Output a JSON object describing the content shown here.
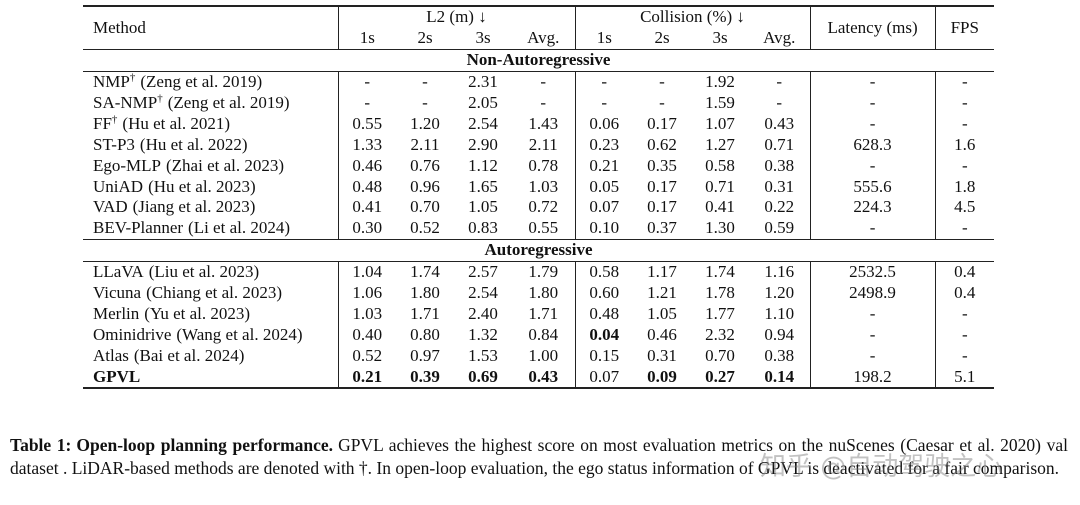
{
  "table": {
    "header": {
      "method": "Method",
      "groups": [
        {
          "label": "L2 (m) ↓",
          "sub": [
            "1s",
            "2s",
            "3s",
            "Avg."
          ]
        },
        {
          "label": "Collision (%) ↓",
          "sub": [
            "1s",
            "2s",
            "3s",
            "Avg."
          ]
        }
      ],
      "latency": "Latency (ms)",
      "fps": "FPS"
    },
    "sections": [
      {
        "title": "Non-Autoregressive",
        "rows": [
          {
            "method": "NMP",
            "sup": "†",
            "cite": "(Zeng et al. 2019)",
            "cells": [
              "-",
              "-",
              "2.31",
              "-",
              "-",
              "-",
              "1.92",
              "-",
              "-",
              "-"
            ]
          },
          {
            "method": "SA-NMP",
            "sup": "†",
            "cite": "(Zeng et al. 2019)",
            "cells": [
              "-",
              "-",
              "2.05",
              "-",
              "-",
              "-",
              "1.59",
              "-",
              "-",
              "-"
            ]
          },
          {
            "method": "FF",
            "sup": "†",
            "cite": "(Hu et al. 2021)",
            "cells": [
              "0.55",
              "1.20",
              "2.54",
              "1.43",
              "0.06",
              "0.17",
              "1.07",
              "0.43",
              "-",
              "-"
            ]
          },
          {
            "method": "ST-P3",
            "cite": "(Hu et al. 2022)",
            "cells": [
              "1.33",
              "2.11",
              "2.90",
              "2.11",
              "0.23",
              "0.62",
              "1.27",
              "0.71",
              "628.3",
              "1.6"
            ]
          },
          {
            "method": "Ego-MLP",
            "cite": "(Zhai et al. 2023)",
            "cells": [
              "0.46",
              "0.76",
              "1.12",
              "0.78",
              "0.21",
              "0.35",
              "0.58",
              "0.38",
              "-",
              "-"
            ]
          },
          {
            "method": "UniAD",
            "cite": "(Hu et al. 2023)",
            "cells": [
              "0.48",
              "0.96",
              "1.65",
              "1.03",
              "0.05",
              "0.17",
              "0.71",
              "0.31",
              "555.6",
              "1.8"
            ]
          },
          {
            "method": "VAD",
            "cite": "(Jiang et al. 2023)",
            "cells": [
              "0.41",
              "0.70",
              "1.05",
              "0.72",
              "0.07",
              "0.17",
              "0.41",
              "0.22",
              "224.3",
              "4.5"
            ]
          },
          {
            "method": "BEV-Planner",
            "cite": "(Li et al. 2024)",
            "cells": [
              "0.30",
              "0.52",
              "0.83",
              "0.55",
              "0.10",
              "0.37",
              "1.30",
              "0.59",
              "-",
              "-"
            ]
          }
        ]
      },
      {
        "title": "Autoregressive",
        "rows": [
          {
            "method": "LLaVA",
            "cite": "(Liu et al. 2023)",
            "cells": [
              "1.04",
              "1.74",
              "2.57",
              "1.79",
              "0.58",
              "1.17",
              "1.74",
              "1.16",
              "2532.5",
              "0.4"
            ]
          },
          {
            "method": "Vicuna",
            "cite": "(Chiang et al. 2023)",
            "cells": [
              "1.06",
              "1.80",
              "2.54",
              "1.80",
              "0.60",
              "1.21",
              "1.78",
              "1.20",
              "2498.9",
              "0.4"
            ]
          },
          {
            "method": "Merlin",
            "cite": "(Yu et al. 2023)",
            "cells": [
              "1.03",
              "1.71",
              "2.40",
              "1.71",
              "0.48",
              "1.05",
              "1.77",
              "1.10",
              "-",
              "-"
            ]
          },
          {
            "method": "Ominidrive",
            "cite": "(Wang et al. 2024)",
            "cells": [
              "0.40",
              "0.80",
              "1.32",
              "0.84",
              "0.04",
              "0.46",
              "2.32",
              "0.94",
              "-",
              "-"
            ],
            "bold_cells": [
              4
            ]
          },
          {
            "method": "Atlas",
            "cite": "(Bai et al. 2024)",
            "cells": [
              "0.52",
              "0.97",
              "1.53",
              "1.00",
              "0.15",
              "0.31",
              "0.70",
              "0.38",
              "-",
              "-"
            ]
          },
          {
            "method": "GPVL",
            "bold_method": true,
            "cells": [
              "0.21",
              "0.39",
              "0.69",
              "0.43",
              "0.07",
              "0.09",
              "0.27",
              "0.14",
              "198.2",
              "5.1"
            ],
            "bold_cells": [
              0,
              1,
              2,
              3,
              5,
              6,
              7
            ]
          }
        ]
      }
    ]
  },
  "caption": {
    "label": "Table 1:",
    "title": "Open-loop planning performance.",
    "text": "GPVL achieves the highest score on most evaluation metrics on the nuScenes (Caesar et al. 2020) val dataset . LiDAR-based methods are denoted with †. In open-loop evaluation, the ego status information of GPVL is deactivated for a fair comparison."
  },
  "watermark": "知乎 @自动驾驶之心"
}
